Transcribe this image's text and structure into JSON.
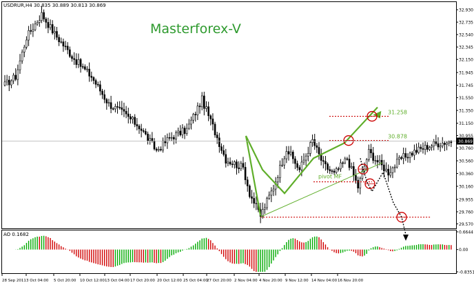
{
  "header": {
    "symbol_info": "USDRUR,H4  30.835 30.889 30.813 30.869",
    "watermark": "Masterforex-V",
    "ao_label": "AO 0.1682"
  },
  "colors": {
    "up": "#00aa00",
    "down": "#d00000",
    "grid": "#c8c8c8",
    "candle": "#000000",
    "pattern": "#5fae2a",
    "level": "#cc0000",
    "watermark": "#2e9a2e",
    "axis_text": "#000000"
  },
  "chart_data": [
    {
      "type": "candlestick",
      "title": "USDRUR,H4",
      "ylim": [
        29.5,
        33.05
      ],
      "y_ticks": [
        "32.930",
        "32.735",
        "32.540",
        "32.345",
        "32.150",
        "31.945",
        "31.745",
        "31.550",
        "31.350",
        "31.150",
        "30.955",
        "30.760",
        "30.560",
        "30.360",
        "30.160",
        "29.955",
        "29.760",
        "29.570"
      ],
      "price_marker": "30.869",
      "levels": [
        {
          "label": "31.258",
          "value": 31.258
        },
        {
          "label": "30.878",
          "value": 30.878
        },
        {
          "label": "pivot MF",
          "value": 30.23
        }
      ],
      "support_level": 29.675,
      "anchors": [
        {
          "t": 0,
          "v": 31.75
        },
        {
          "t": 5,
          "v": 31.88
        },
        {
          "t": 10,
          "v": 32.5
        },
        {
          "t": 17,
          "v": 32.86
        },
        {
          "t": 23,
          "v": 32.55
        },
        {
          "t": 32,
          "v": 32.16
        },
        {
          "t": 40,
          "v": 31.88
        },
        {
          "t": 48,
          "v": 31.45
        },
        {
          "t": 55,
          "v": 31.3
        },
        {
          "t": 62,
          "v": 31.1
        },
        {
          "t": 70,
          "v": 30.72
        },
        {
          "t": 76,
          "v": 30.92
        },
        {
          "t": 84,
          "v": 31.05
        },
        {
          "t": 91,
          "v": 31.52
        },
        {
          "t": 96,
          "v": 31.1
        },
        {
          "t": 102,
          "v": 30.58
        },
        {
          "t": 110,
          "v": 30.45
        },
        {
          "t": 113,
          "v": 30.05
        },
        {
          "t": 118,
          "v": 29.7
        },
        {
          "t": 124,
          "v": 30.15
        },
        {
          "t": 130,
          "v": 30.75
        },
        {
          "t": 136,
          "v": 30.42
        },
        {
          "t": 142,
          "v": 30.88
        },
        {
          "t": 147,
          "v": 30.5
        },
        {
          "t": 152,
          "v": 30.35
        },
        {
          "t": 158,
          "v": 30.6
        },
        {
          "t": 163,
          "v": 30.15
        },
        {
          "t": 168,
          "v": 30.7
        },
        {
          "t": 172,
          "v": 30.55
        },
        {
          "t": 177,
          "v": 30.38
        },
        {
          "t": 183,
          "v": 30.6
        },
        {
          "t": 190,
          "v": 30.72
        },
        {
          "t": 198,
          "v": 30.82
        },
        {
          "t": 206,
          "v": 30.87
        }
      ],
      "x_labels": [
        "28 Sep 2011",
        "3 Oct 04:00",
        "5 Oct 20:00",
        "10 Oct 12:00",
        "13 Oct 04:00",
        "17 Oct 20:00",
        "20 Oct 12:00",
        "25 Oct 04:00",
        "27 Oct 20:00",
        "2 Nov 04:00",
        "4 Nov 20:00",
        "9 Nov 12:00",
        "14 Nov 04:00",
        "16 Nov 20:00"
      ],
      "grid": false
    },
    {
      "type": "bar",
      "title": "AO 0.1682",
      "y_ticks": [
        "0.6644",
        "0.00",
        "-0.8351"
      ],
      "ylim": [
        -0.8351,
        0.6644
      ],
      "series": [
        {
          "values_note": "awesome oscillator histogram, green rising / red falling"
        }
      ]
    }
  ]
}
